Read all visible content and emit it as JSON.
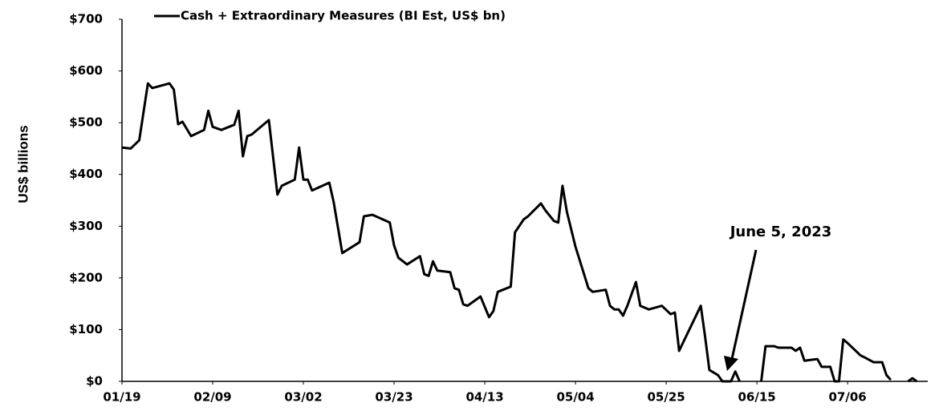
{
  "chart_data": {
    "type": "line",
    "ylabel": "US$ billions",
    "annotation": "June 5, 2023",
    "x": [
      "01/19",
      "01/21",
      "01/23",
      "01/25",
      "01/26",
      "01/30",
      "01/31",
      "02/01",
      "02/02",
      "02/04",
      "02/07",
      "02/08",
      "02/09",
      "02/11",
      "02/14",
      "02/15",
      "02/16",
      "02/17",
      "02/18",
      "02/22",
      "02/24",
      "02/25",
      "02/28",
      "03/01",
      "03/02",
      "03/03",
      "03/04",
      "03/08",
      "03/09",
      "03/11",
      "03/15",
      "03/16",
      "03/18",
      "03/22",
      "03/23",
      "03/24",
      "03/26",
      "03/29",
      "03/30",
      "03/31",
      "04/01",
      "04/02",
      "04/05",
      "04/06",
      "04/07",
      "04/08",
      "04/09",
      "04/12",
      "04/14",
      "04/15",
      "04/16",
      "04/19",
      "04/20",
      "04/22",
      "04/23",
      "04/26",
      "04/27",
      "04/29",
      "04/30",
      "05/01",
      "05/02",
      "05/04",
      "05/07",
      "05/08",
      "05/11",
      "05/12",
      "05/13",
      "05/14",
      "05/15",
      "05/16",
      "05/18",
      "05/19",
      "05/21",
      "05/24",
      "05/26",
      "05/27",
      "05/28",
      "06/02",
      "06/03",
      "06/04",
      "06/06",
      "06/07",
      "06/09",
      "06/10",
      "06/11",
      "06/13",
      "06/16",
      "06/17",
      "06/19",
      "06/20",
      "06/23",
      "06/24",
      "06/25",
      "06/26",
      "06/29",
      "06/30",
      "07/02",
      "07/03",
      "07/04",
      "07/05",
      "07/06",
      "07/09",
      "07/10",
      "07/12",
      "07/14",
      "07/15",
      "07/16",
      "07/18",
      "07/20",
      "07/21",
      "07/22"
    ],
    "series": [
      {
        "name": "Cash + Extraordinary Measures (BI Est, US$ bn)",
        "color": "#000000",
        "values": [
          452,
          450,
          466,
          576,
          567,
          576,
          564,
          497,
          502,
          474,
          486,
          523,
          492,
          486,
          496,
          523,
          435,
          474,
          477,
          505,
          361,
          378,
          390,
          452,
          390,
          390,
          369,
          384,
          347,
          248,
          269,
          319,
          322,
          307,
          263,
          239,
          226,
          242,
          207,
          204,
          232,
          214,
          211,
          180,
          177,
          149,
          146,
          164,
          124,
          136,
          173,
          183,
          288,
          313,
          319,
          344,
          331,
          310,
          307,
          378,
          328,
          260,
          180,
          173,
          177,
          146,
          139,
          139,
          127,
          146,
          192,
          146,
          139,
          146,
          130,
          133,
          59,
          146,
          87,
          22,
          12,
          0,
          0,
          19,
          0,
          null,
          0,
          68,
          68,
          65,
          65,
          59,
          65,
          40,
          43,
          28,
          28,
          0,
          0,
          81,
          74,
          50,
          46,
          37,
          37,
          12,
          3,
          null,
          0,
          6,
          0
        ]
      }
    ],
    "xlim": [
      "01/19",
      "07/24"
    ],
    "xticks": [
      "01/19",
      "02/09",
      "03/02",
      "03/23",
      "04/13",
      "05/04",
      "05/25",
      "06/15",
      "07/06"
    ],
    "ylim": [
      0,
      700
    ],
    "yticks": [
      {
        "value": 0,
        "label": "$0"
      },
      {
        "value": 100,
        "label": "$100"
      },
      {
        "value": 200,
        "label": "$200"
      },
      {
        "value": 300,
        "label": "$300"
      },
      {
        "value": 400,
        "label": "$400"
      },
      {
        "value": 500,
        "label": "$500"
      },
      {
        "value": 600,
        "label": "$600"
      },
      {
        "value": 700,
        "label": "$700"
      }
    ],
    "grid": false
  }
}
